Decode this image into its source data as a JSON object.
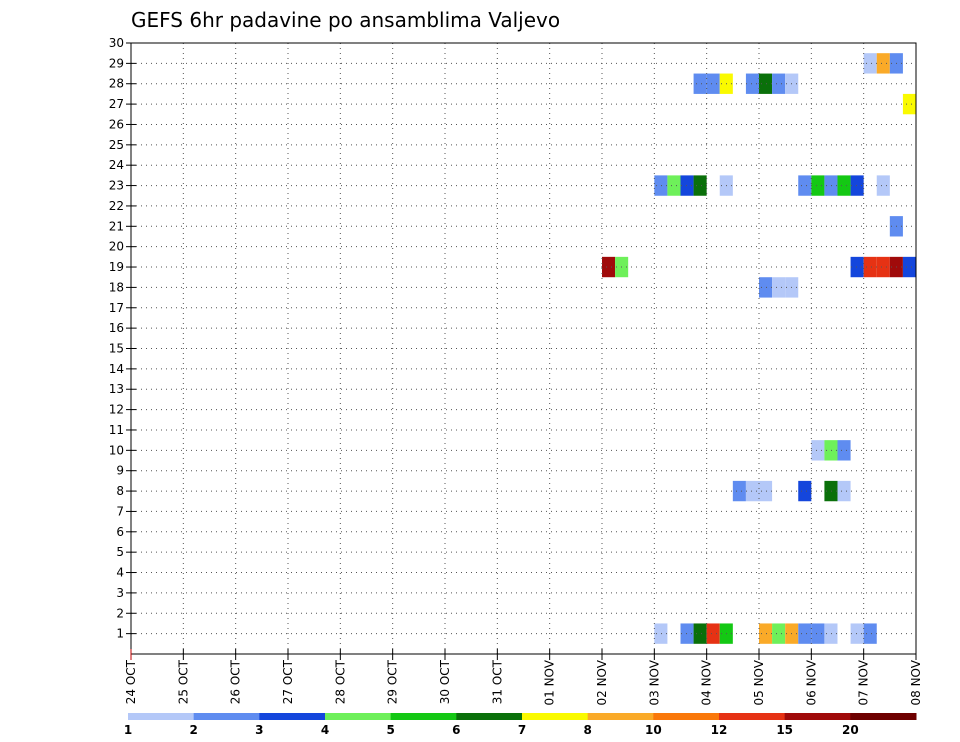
{
  "chart_data": {
    "type": "heatmap",
    "title": "GEFS 6hr padavine po ansamblima Valjevo",
    "xlabel": "",
    "ylabel": "",
    "x_ticks": [
      "24 OCT",
      "25 OCT",
      "26 OCT",
      "27 OCT",
      "28 OCT",
      "29 OCT",
      "30 OCT",
      "31 OCT",
      "01 NOV",
      "02 NOV",
      "03 NOV",
      "04 NOV",
      "05 NOV",
      "06 NOV",
      "07 NOV",
      "08 NOV"
    ],
    "x_range_days": [
      0,
      15
    ],
    "y_ticks": [
      1,
      2,
      3,
      4,
      5,
      6,
      7,
      8,
      9,
      10,
      11,
      12,
      13,
      14,
      15,
      16,
      17,
      18,
      19,
      20,
      21,
      22,
      23,
      24,
      25,
      26,
      27,
      28,
      29,
      30
    ],
    "y_range": [
      0,
      30
    ],
    "grid": "dotted",
    "step_hours": 6,
    "colorbar": {
      "tick_labels": [
        "1",
        "2",
        "3",
        "4",
        "5",
        "6",
        "7",
        "8",
        "10",
        "12",
        "15",
        "20"
      ],
      "colors": [
        "#b4c8f8",
        "#5f8cf0",
        "#1446dc",
        "#6ef05a",
        "#14c814",
        "#0a700a",
        "#fafa00",
        "#faaa28",
        "#fa780a",
        "#e63214",
        "#a00a0a",
        "#6e0000"
      ]
    },
    "cells": [
      {
        "member": 29,
        "time_days": 14.0,
        "level": 1
      },
      {
        "member": 29,
        "time_days": 14.25,
        "level": 8
      },
      {
        "member": 29,
        "time_days": 14.5,
        "level": 2
      },
      {
        "member": 28,
        "time_days": 10.75,
        "level": 2
      },
      {
        "member": 28,
        "time_days": 11.0,
        "level": 2
      },
      {
        "member": 28,
        "time_days": 11.25,
        "level": 7
      },
      {
        "member": 28,
        "time_days": 11.75,
        "level": 2
      },
      {
        "member": 28,
        "time_days": 12.0,
        "level": 6
      },
      {
        "member": 28,
        "time_days": 12.25,
        "level": 2
      },
      {
        "member": 28,
        "time_days": 12.5,
        "level": 1
      },
      {
        "member": 27,
        "time_days": 14.75,
        "level": 7
      },
      {
        "member": 23,
        "time_days": 10.0,
        "level": 2
      },
      {
        "member": 23,
        "time_days": 10.25,
        "level": 4
      },
      {
        "member": 23,
        "time_days": 10.5,
        "level": 3
      },
      {
        "member": 23,
        "time_days": 10.75,
        "level": 6
      },
      {
        "member": 23,
        "time_days": 11.25,
        "level": 1
      },
      {
        "member": 23,
        "time_days": 12.75,
        "level": 2
      },
      {
        "member": 23,
        "time_days": 13.0,
        "level": 5
      },
      {
        "member": 23,
        "time_days": 13.25,
        "level": 2
      },
      {
        "member": 23,
        "time_days": 13.5,
        "level": 5
      },
      {
        "member": 23,
        "time_days": 13.75,
        "level": 3
      },
      {
        "member": 23,
        "time_days": 14.25,
        "level": 1
      },
      {
        "member": 21,
        "time_days": 14.5,
        "level": 2
      },
      {
        "member": 19,
        "time_days": 9.0,
        "level": 11
      },
      {
        "member": 19,
        "time_days": 9.25,
        "level": 4
      },
      {
        "member": 19,
        "time_days": 13.75,
        "level": 3
      },
      {
        "member": 19,
        "time_days": 14.0,
        "level": 10
      },
      {
        "member": 19,
        "time_days": 14.25,
        "level": 10
      },
      {
        "member": 19,
        "time_days": 14.5,
        "level": 11
      },
      {
        "member": 19,
        "time_days": 14.75,
        "level": 3
      },
      {
        "member": 18,
        "time_days": 12.0,
        "level": 2
      },
      {
        "member": 18,
        "time_days": 12.25,
        "level": 1
      },
      {
        "member": 18,
        "time_days": 12.5,
        "level": 1
      },
      {
        "member": 10,
        "time_days": 13.0,
        "level": 1
      },
      {
        "member": 10,
        "time_days": 13.25,
        "level": 4
      },
      {
        "member": 10,
        "time_days": 13.5,
        "level": 2
      },
      {
        "member": 8,
        "time_days": 11.5,
        "level": 2
      },
      {
        "member": 8,
        "time_days": 11.75,
        "level": 1
      },
      {
        "member": 8,
        "time_days": 12.0,
        "level": 1
      },
      {
        "member": 8,
        "time_days": 12.75,
        "level": 3
      },
      {
        "member": 8,
        "time_days": 13.25,
        "level": 6
      },
      {
        "member": 8,
        "time_days": 13.5,
        "level": 1
      },
      {
        "member": 1,
        "time_days": 10.0,
        "level": 1
      },
      {
        "member": 1,
        "time_days": 10.5,
        "level": 2
      },
      {
        "member": 1,
        "time_days": 10.75,
        "level": 6
      },
      {
        "member": 1,
        "time_days": 11.0,
        "level": 10
      },
      {
        "member": 1,
        "time_days": 11.25,
        "level": 5
      },
      {
        "member": 1,
        "time_days": 12.0,
        "level": 8
      },
      {
        "member": 1,
        "time_days": 12.25,
        "level": 4
      },
      {
        "member": 1,
        "time_days": 12.5,
        "level": 8
      },
      {
        "member": 1,
        "time_days": 12.75,
        "level": 2
      },
      {
        "member": 1,
        "time_days": 13.0,
        "level": 2
      },
      {
        "member": 1,
        "time_days": 13.25,
        "level": 1
      },
      {
        "member": 1,
        "time_days": 13.75,
        "level": 1
      },
      {
        "member": 1,
        "time_days": 14.0,
        "level": 2
      }
    ]
  }
}
